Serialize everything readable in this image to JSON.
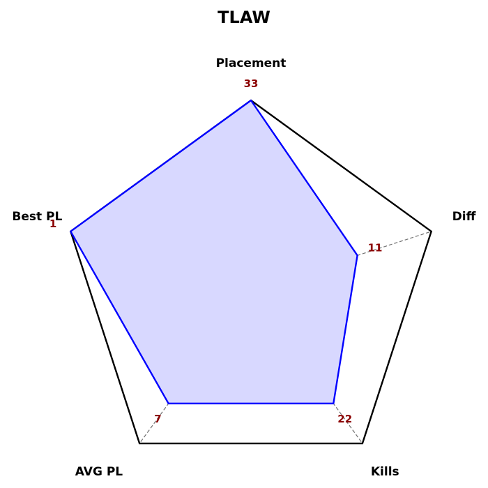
{
  "chart_data": {
    "type": "radar",
    "title": "TLAW",
    "axes": [
      "Placement",
      "Diff",
      "Kills",
      "AVG PL",
      "Best PL"
    ],
    "series": [
      {
        "values": [
          33,
          11,
          22,
          7,
          1
        ],
        "normalized": [
          1.0,
          0.59,
          0.74,
          0.74,
          1.0
        ]
      }
    ],
    "rmax": 1.0,
    "grid_levels": [
      0.5
    ],
    "grid": true,
    "legend": "none",
    "colors": {
      "series_line": "#0000ff",
      "series_fill": "#d8d8ff",
      "frame": "#000000",
      "grid": "#707070",
      "value_text": "#8b0000"
    }
  }
}
